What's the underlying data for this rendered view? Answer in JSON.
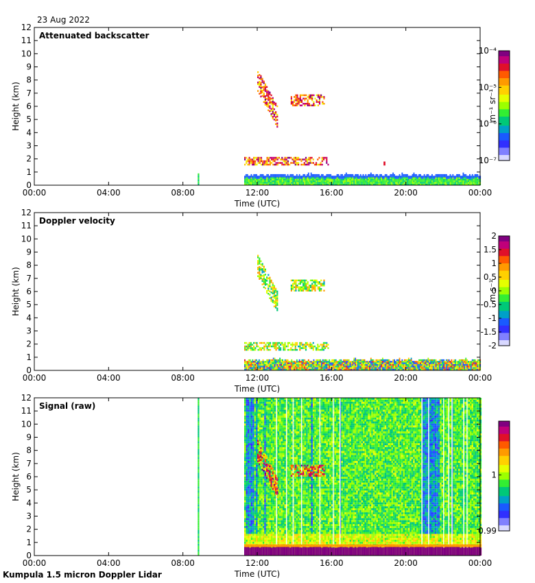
{
  "date": "23 Aug 2022",
  "footer": "Kumpula 1.5 micron Doppler Lidar",
  "x_ticks": [
    "00:00",
    "04:00",
    "08:00",
    "12:00",
    "16:00",
    "20:00",
    "00:00"
  ],
  "y_ticks": [
    0,
    1,
    2,
    3,
    4,
    5,
    6,
    7,
    8,
    9,
    10,
    11,
    12
  ],
  "chart_data": [
    {
      "type": "heatmap",
      "title": "Attenuated backscatter",
      "xlabel": "Time (UTC)",
      "ylabel": "Height (km)",
      "xlim_hours": [
        0,
        24
      ],
      "ylim": [
        0,
        12
      ],
      "colorbar": {
        "scale": "log",
        "unit": "m⁻¹ sr⁻¹",
        "range": [
          1e-07,
          0.0001
        ],
        "ticks": [
          "10⁻⁴",
          "10⁻⁵",
          "10⁻⁶",
          "10⁻⁷"
        ],
        "ticks_values": [
          -4,
          -5,
          -6,
          -7
        ]
      },
      "features": [
        {
          "kind": "boundary-layer",
          "t_start": 11.3,
          "t_end": 24,
          "h_bottom": 0,
          "h_top": 0.8
        },
        {
          "kind": "cloud",
          "t_start": 11.3,
          "t_end": 15.8,
          "h_bottom": 1.5,
          "h_top": 2.1
        },
        {
          "kind": "cloud",
          "t_start": 12.0,
          "t_end": 13.1,
          "h_bottom": 4.9,
          "h_top": 8.5
        },
        {
          "kind": "cloud",
          "t_start": 13.8,
          "t_end": 15.6,
          "h_bottom": 6.0,
          "h_top": 6.8
        },
        {
          "kind": "spike",
          "t": 8.8,
          "h_top": 0.9
        },
        {
          "kind": "point",
          "t": 18.8,
          "h": 1.5
        }
      ]
    },
    {
      "type": "heatmap",
      "title": "Doppler velocity",
      "xlabel": "Time (UTC)",
      "ylabel": "Height (km)",
      "xlim_hours": [
        0,
        24
      ],
      "ylim": [
        0,
        12
      ],
      "colorbar": {
        "scale": "linear",
        "unit": "m s⁻¹",
        "range": [
          -2,
          2
        ],
        "ticks": [
          "2",
          "1.5",
          "1",
          "0.5",
          "0",
          "-0.5",
          "-1",
          "-1.5",
          "-2"
        ],
        "ticks_values": [
          2,
          1.5,
          1,
          0.5,
          0,
          -0.5,
          -1,
          -1.5,
          -2
        ]
      },
      "features": [
        {
          "kind": "boundary-layer",
          "t_start": 11.3,
          "t_end": 24,
          "h_bottom": 0,
          "h_top": 0.8
        },
        {
          "kind": "cloud",
          "t_start": 11.3,
          "t_end": 15.8,
          "h_bottom": 1.5,
          "h_top": 2.1
        },
        {
          "kind": "cloud",
          "t_start": 12.0,
          "t_end": 13.1,
          "h_bottom": 4.9,
          "h_top": 8.5
        },
        {
          "kind": "cloud",
          "t_start": 13.8,
          "t_end": 15.6,
          "h_bottom": 6.0,
          "h_top": 6.8
        }
      ]
    },
    {
      "type": "heatmap",
      "title": "Signal (raw)",
      "xlabel": "Time (UTC)",
      "ylabel": "Height (km)",
      "xlim_hours": [
        0,
        24
      ],
      "ylim": [
        0,
        12
      ],
      "colorbar": {
        "scale": "linear",
        "unit": "",
        "range": [
          0.99,
          1.01
        ],
        "ticks": [
          "1",
          "0.99"
        ],
        "ticks_values": [
          1,
          0.99
        ]
      },
      "features": [
        {
          "kind": "noise-field",
          "t_start": 11.3,
          "t_end": 24,
          "h_bottom": 0,
          "h_top": 12
        },
        {
          "kind": "surface-layer",
          "t_start": 11.3,
          "t_end": 24,
          "h_bottom": 0,
          "h_top": 0.8
        },
        {
          "kind": "cloud",
          "t_start": 12.0,
          "t_end": 13.1,
          "h_bottom": 4.9,
          "h_top": 8.5
        },
        {
          "kind": "cloud",
          "t_start": 13.8,
          "t_end": 15.6,
          "h_bottom": 6.0,
          "h_top": 6.8
        },
        {
          "kind": "spike",
          "t": 8.8,
          "h_top": 12
        }
      ]
    }
  ]
}
